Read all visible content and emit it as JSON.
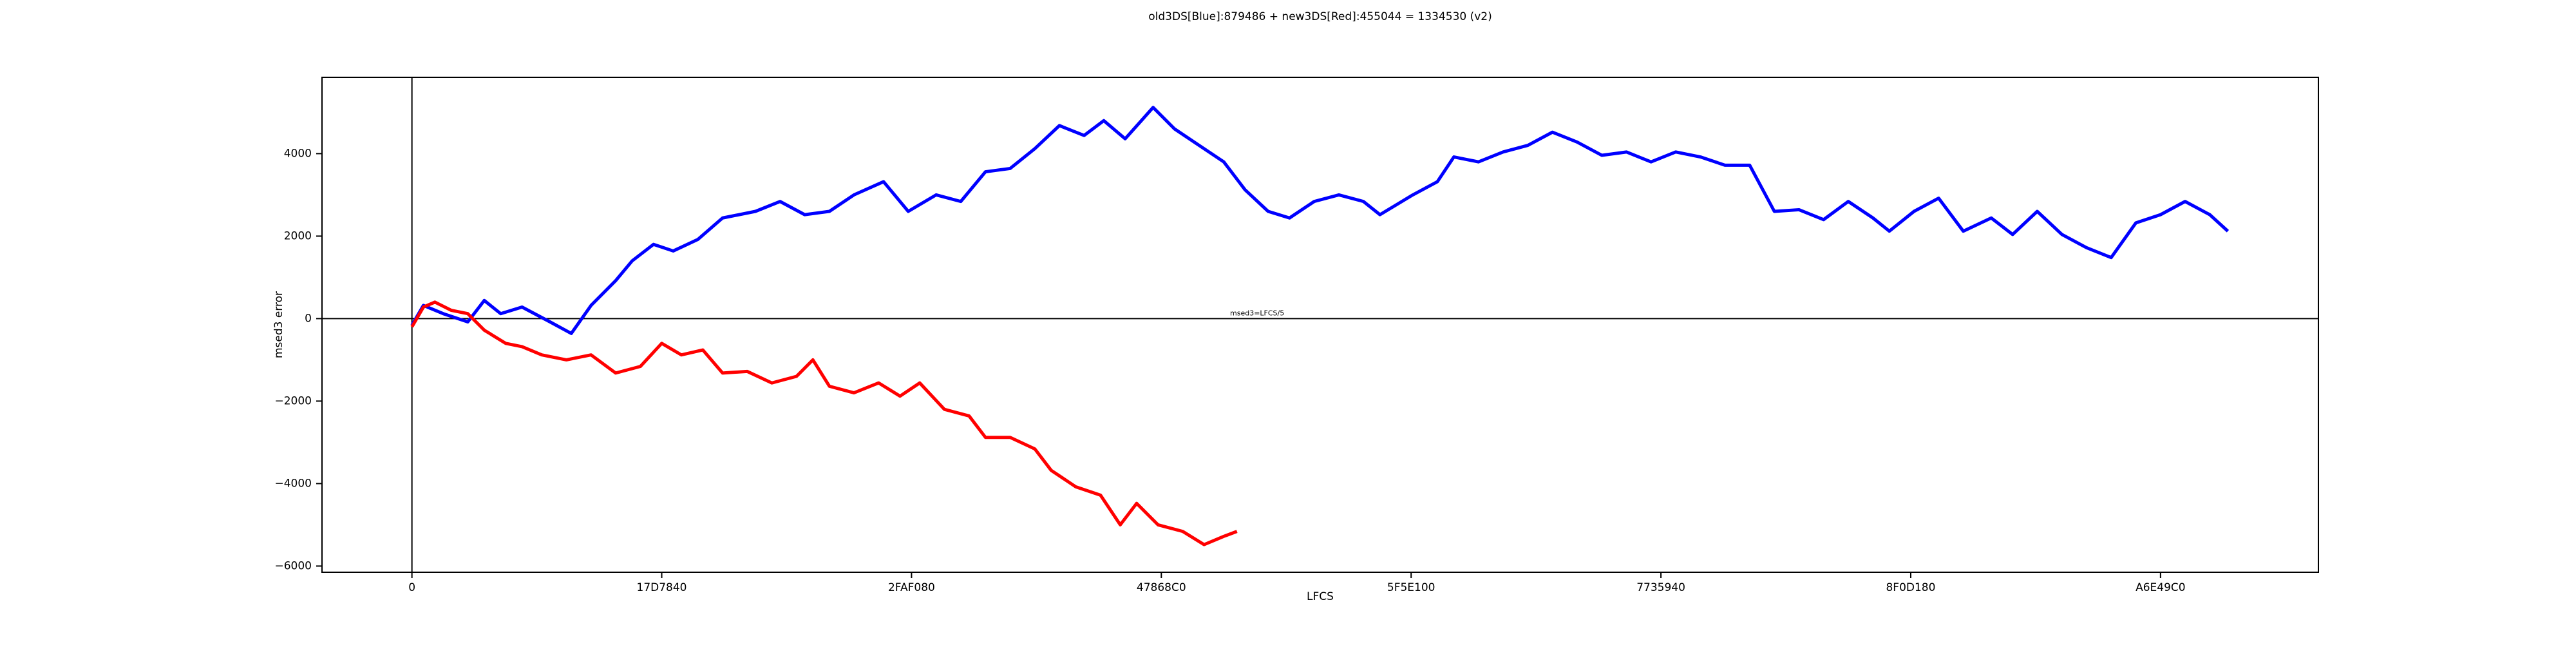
{
  "chart_data": {
    "type": "line",
    "title": "old3DS[Blue]:879486 + new3DS[Red]:455044 = 1334530 (v2)",
    "x_label": "LFCS",
    "y_label": "msed3 error",
    "annotation": "msed3=LFCS/5",
    "xlim": [
      -9000000,
      190800000
    ],
    "ylim": [
      -6150,
      5850
    ],
    "xticks": [
      0,
      {
        "value": 25000000,
        "label": "17D7840"
      },
      {
        "value": 50000000,
        "label": "2FAF080"
      },
      {
        "value": 75000000,
        "label": "47868C0"
      },
      {
        "value": 100000000,
        "label": "5F5E100"
      },
      {
        "value": 125000000,
        "label": "7735940"
      },
      {
        "value": 150000000,
        "label": "8F0D180"
      },
      {
        "value": 175000000,
        "label": "A6E49C0"
      }
    ],
    "yticks": [
      {
        "value": -6000,
        "label": "−6000"
      },
      {
        "value": -4000,
        "label": "−4000"
      },
      {
        "value": -2000,
        "label": "−2000"
      },
      0,
      2000,
      4000
    ],
    "reference_lines": {
      "x": 0,
      "y": 0
    },
    "series": [
      {
        "color": "#0000ff",
        "x": [
          0,
          1150000,
          3130000,
          5590000,
          7240000,
          8880000,
          11020000,
          13820000,
          15950000,
          17930000,
          20390000,
          22040000,
          24180000,
          26150000,
          28620000,
          31090000,
          34380000,
          36840000,
          39310000,
          41780000,
          44240000,
          47200000,
          49670000,
          52470000,
          54930000,
          57400000,
          59870000,
          62340000,
          64800000,
          67270000,
          69240000,
          71380000,
          74180000,
          76320000,
          78780000,
          81250000,
          83390000,
          85690000,
          87830000,
          90300000,
          92770000,
          95230000,
          96880000,
          100170000,
          102630000,
          104280000,
          106740000,
          109210000,
          111680000,
          114140000,
          116610000,
          119080000,
          121550000,
          124010000,
          126480000,
          128950000,
          131410000,
          133880000,
          136350000,
          138820000,
          141280000,
          143750000,
          146220000,
          147860000,
          150330000,
          152790000,
          155260000,
          158060000,
          160200000,
          162660000,
          165130000,
          167590000,
          170060000,
          172530000,
          175000000,
          177460000,
          179930000,
          181740000
        ],
        "values": [
          -160,
          320,
          120,
          -80,
          440,
          120,
          280,
          -80,
          -360,
          320,
          920,
          1400,
          1800,
          1640,
          1920,
          2440,
          2600,
          2840,
          2520,
          2600,
          3000,
          3320,
          2600,
          3000,
          2840,
          3560,
          3640,
          4120,
          4680,
          4440,
          4800,
          4360,
          5120,
          4600,
          4200,
          3800,
          3120,
          2600,
          2440,
          2840,
          3000,
          2840,
          2520,
          3000,
          3320,
          3920,
          3800,
          4040,
          4200,
          4520,
          4280,
          3960,
          4040,
          3800,
          4040,
          3920,
          3720,
          3720,
          2600,
          2640,
          2400,
          2840,
          2440,
          2120,
          2600,
          2920,
          2120,
          2440,
          2040,
          2600,
          2040,
          1720,
          1480,
          2320,
          2520,
          2840,
          2520,
          2120
        ]
      },
      {
        "color": "#ff0000",
        "x": [
          0,
          1150000,
          2300000,
          3950000,
          5590000,
          7240000,
          9380000,
          11020000,
          12990000,
          15460000,
          17930000,
          20390000,
          22860000,
          25000000,
          26970000,
          29110000,
          31090000,
          33550000,
          36020000,
          38490000,
          40130000,
          41780000,
          44240000,
          46710000,
          48850000,
          50820000,
          53290000,
          55760000,
          57400000,
          59870000,
          62340000,
          63980000,
          66450000,
          68910000,
          70890000,
          72530000,
          74670000,
          77140000,
          79280000,
          81250000,
          82570000
        ],
        "values": [
          -200,
          280,
          400,
          200,
          120,
          -280,
          -600,
          -680,
          -880,
          -1000,
          -880,
          -1320,
          -1160,
          -600,
          -880,
          -760,
          -1320,
          -1280,
          -1560,
          -1400,
          -1000,
          -1640,
          -1800,
          -1560,
          -1880,
          -1560,
          -2200,
          -2360,
          -2880,
          -2880,
          -3160,
          -3680,
          -4080,
          -4280,
          -5000,
          -4480,
          -5000,
          -5160,
          -5480,
          -5280,
          -5160
        ]
      }
    ]
  }
}
